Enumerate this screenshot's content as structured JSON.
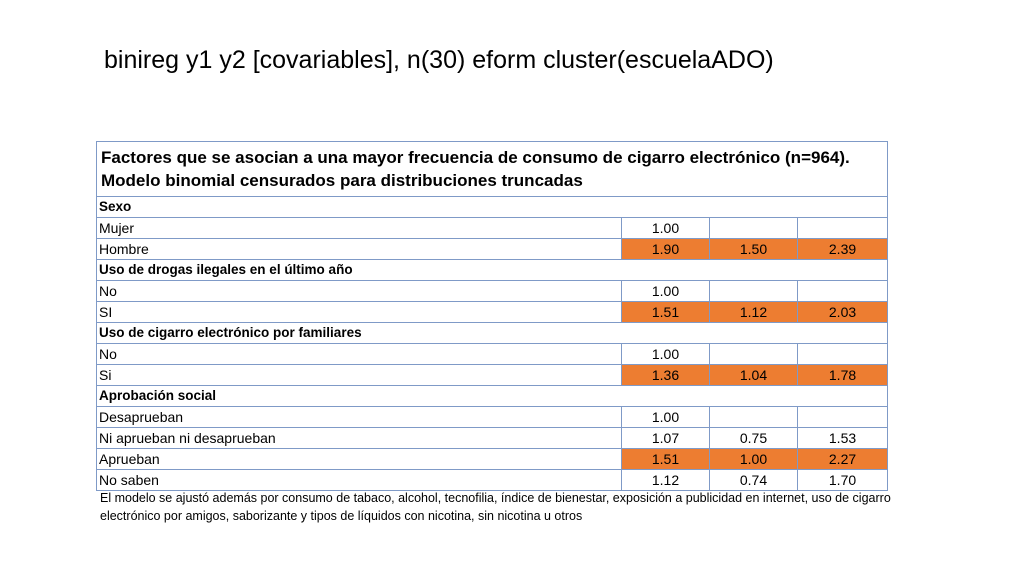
{
  "title": "binireg y1 y2 [covariables], n(30) eform cluster(escuelaADO)",
  "table": {
    "caption": " Factores que se asocian a una mayor frecuencia de consumo de cigarro electrónico (n=964). Modelo binomial censurados para distribuciones truncadas",
    "highlight_color": "#ed7d31",
    "sections": [
      {
        "name": "Sexo",
        "rows": [
          {
            "label": "Mujer",
            "or": "1.00",
            "ci_low": "",
            "ci_high": "",
            "significant": false
          },
          {
            "label": "Hombre",
            "or": "1.90",
            "ci_low": "1.50",
            "ci_high": "2.39",
            "significant": true
          }
        ]
      },
      {
        "name": "Uso de drogas ilegales en el último año",
        "rows": [
          {
            "label": "No",
            "or": "1.00",
            "ci_low": "",
            "ci_high": "",
            "significant": false
          },
          {
            "label": "SI",
            "or": "1.51",
            "ci_low": "1.12",
            "ci_high": "2.03",
            "significant": true
          }
        ]
      },
      {
        "name": "Uso de cigarro electrónico por familiares",
        "rows": [
          {
            "label": "No",
            "or": "1.00",
            "ci_low": "",
            "ci_high": "",
            "significant": false
          },
          {
            "label": "Si",
            "or": "1.36",
            "ci_low": "1.04",
            "ci_high": "1.78",
            "significant": true
          }
        ]
      },
      {
        "name": "Aprobación social",
        "rows": [
          {
            "label": "Desaprueban",
            "or": "1.00",
            "ci_low": "",
            "ci_high": "",
            "significant": false
          },
          {
            "label": "Ni aprueban ni desaprueban",
            "or": "1.07",
            "ci_low": "0.75",
            "ci_high": "1.53",
            "significant": false
          },
          {
            "label": "Aprueban",
            "or": "1.51",
            "ci_low": "1.00",
            "ci_high": "2.27",
            "significant": true
          },
          {
            "label": "No saben",
            "or": "1.12",
            "ci_low": "0.74",
            "ci_high": "1.70",
            "significant": false
          }
        ]
      }
    ]
  },
  "footnote": "El modelo se ajustó además  por consumo de tabaco, alcohol, tecnofilia, índice de bienestar, exposición a publicidad en internet, uso de cigarro electrónico por amigos, saborizante y tipos de líquidos con nicotina, sin nicotina u otros"
}
